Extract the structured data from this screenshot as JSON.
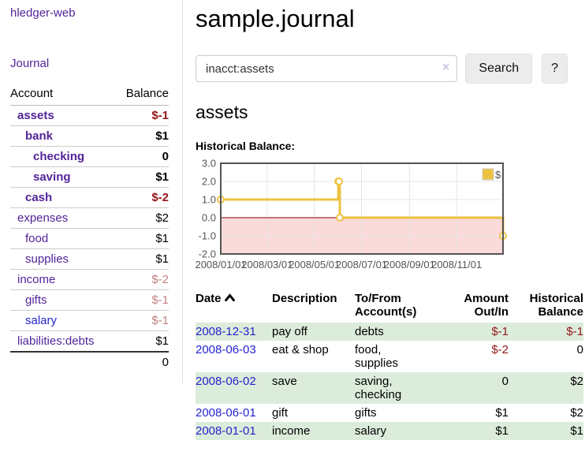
{
  "app": {
    "title": "hledger-web",
    "nav_journal": "Journal"
  },
  "colors": {
    "accent_purple": "#52249a",
    "link_blue": "#2424cc",
    "negative_strong": "#941616",
    "negative_muted": "#c08181",
    "row_green": "#dcecdb"
  },
  "sidebar": {
    "header": {
      "account": "Account",
      "balance": "Balance"
    },
    "accounts": [
      {
        "name": "assets",
        "indent": 1,
        "bold": true,
        "balance": "$-1",
        "negative": true
      },
      {
        "name": "bank",
        "indent": 2,
        "bold": true,
        "balance": "$1",
        "negative": false
      },
      {
        "name": "checking",
        "indent": 3,
        "bold": true,
        "balance": "0",
        "negative": false
      },
      {
        "name": "saving",
        "indent": 3,
        "bold": true,
        "balance": "$1",
        "negative": false
      },
      {
        "name": "cash",
        "indent": 2,
        "bold": true,
        "balance": "$-2",
        "negative": true
      },
      {
        "name": "expenses",
        "indent": 1,
        "bold": false,
        "balance": "$2",
        "negative": false
      },
      {
        "name": "food",
        "indent": 2,
        "bold": false,
        "balance": "$1",
        "negative": false
      },
      {
        "name": "supplies",
        "indent": 2,
        "bold": false,
        "balance": "$1",
        "negative": false
      },
      {
        "name": "income",
        "indent": 1,
        "bold": false,
        "balance": "$-2",
        "negative": true
      },
      {
        "name": "gifts",
        "indent": 2,
        "bold": false,
        "balance": "$-1",
        "negative": true
      },
      {
        "name": "salary",
        "indent": 2,
        "bold": false,
        "balance": "$-1",
        "negative": true,
        "link_style": "blue"
      },
      {
        "name": "liabilities:debts",
        "indent": 1,
        "bold": false,
        "balance": "$1",
        "negative": false
      }
    ],
    "total": "0"
  },
  "main": {
    "title": "sample.journal",
    "search": {
      "value": "inacct:assets",
      "clear_icon": "×",
      "button": "Search",
      "help_button": "?"
    },
    "account_heading": "assets",
    "chart_label": "Historical Balance:"
  },
  "chart_data": {
    "type": "line",
    "style": "step",
    "title": "Historical Balance",
    "series": [
      {
        "name": "$",
        "color": "#edc240",
        "points": [
          [
            "2008-01-01",
            1
          ],
          [
            "2008-06-01",
            2
          ],
          [
            "2008-06-02",
            2
          ],
          [
            "2008-06-03",
            0
          ],
          [
            "2008-12-31",
            -1
          ]
        ]
      }
    ],
    "xdomain": [
      "2008-01-01",
      "2008-12-31"
    ],
    "ylim": [
      -2.0,
      3.0
    ],
    "yticks": [
      "3.0",
      "2.0",
      "1.0",
      "0.0",
      "-1.0",
      "-2.0"
    ],
    "xticks": [
      "2008/01/01",
      "2008/03/01",
      "2008/05/01",
      "2008/07/01",
      "2008/09/01",
      "2008/11/01"
    ],
    "legend": "$",
    "legend_position": "top-right",
    "grid": true,
    "grid_color": "#e6e6e6",
    "border_color": "#545454",
    "negative_region_color": "#fbdada",
    "zero_line_color": "#800000",
    "tick_label_color": "#545454"
  },
  "table": {
    "columns": [
      {
        "label": "Date",
        "align": "left",
        "sorted": "asc"
      },
      {
        "label": "Description",
        "align": "left"
      },
      {
        "label": "To/From Account(s)",
        "align": "left"
      },
      {
        "label": "Amount Out/In",
        "align": "right"
      },
      {
        "label": "Historical Balance",
        "align": "right"
      }
    ],
    "rows": [
      {
        "date": "2008-12-31",
        "description": "pay off",
        "accounts": "debts",
        "amount": "$-1",
        "amount_negative": true,
        "balance": "$-1",
        "balance_negative": true
      },
      {
        "date": "2008-06-03",
        "description": "eat & shop",
        "accounts": "food, supplies",
        "amount": "$-2",
        "amount_negative": true,
        "balance": "0",
        "balance_negative": false
      },
      {
        "date": "2008-06-02",
        "description": "save",
        "accounts": "saving, checking",
        "amount": "0",
        "amount_negative": false,
        "balance": "$2",
        "balance_negative": false
      },
      {
        "date": "2008-06-01",
        "description": "gift",
        "accounts": "gifts",
        "amount": "$1",
        "amount_negative": false,
        "balance": "$2",
        "balance_negative": false
      },
      {
        "date": "2008-01-01",
        "description": "income",
        "accounts": "salary",
        "amount": "$1",
        "amount_negative": false,
        "balance": "$1",
        "balance_negative": false
      }
    ]
  }
}
